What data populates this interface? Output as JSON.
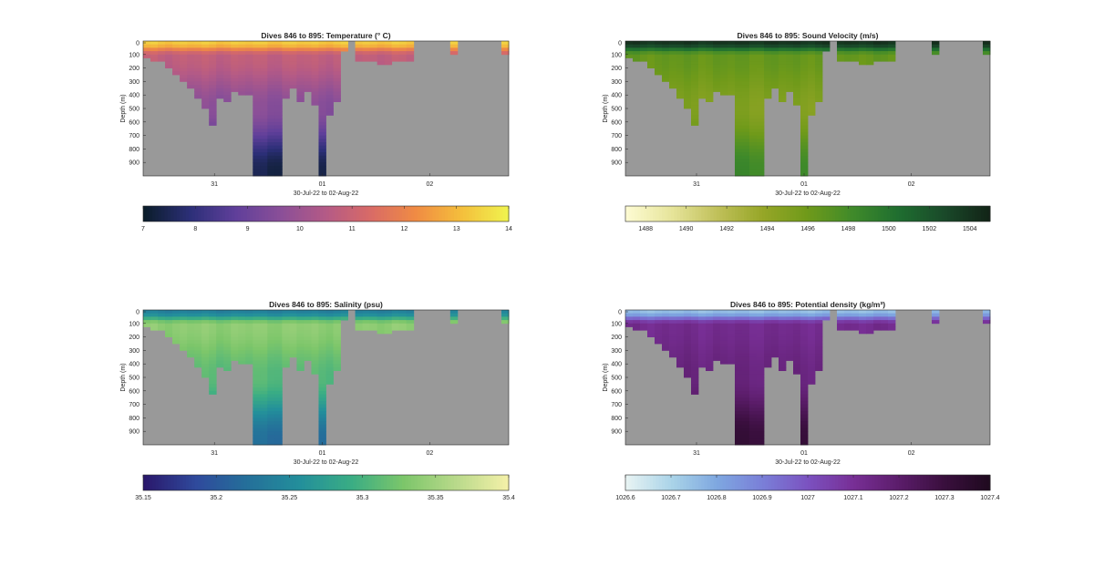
{
  "figure": {
    "panels": [
      {
        "id": "temperature",
        "title": "Dives 846 to 895: Temperature (° C)",
        "ylabel": "Depth (m)",
        "xlabel": "30-Jul-22 to 02-Aug-22",
        "xticks": [
          "31",
          "01",
          "02"
        ],
        "yticks": [
          "0",
          "100",
          "200",
          "300",
          "400",
          "500",
          "600",
          "700",
          "800",
          "900"
        ],
        "colorbar_ticks": [
          "7",
          "8",
          "9",
          "10",
          "11",
          "12",
          "13",
          "14"
        ],
        "colormap": [
          "#0b1d2b",
          "#2c2f78",
          "#5f3f9a",
          "#8a4f98",
          "#b45a86",
          "#d96b66",
          "#f08c43",
          "#f4bf3c",
          "#f0f24e"
        ],
        "range": [
          7,
          14
        ],
        "surface_value": 13.3,
        "mixed_value": 10.8,
        "deep_value": 9.6,
        "bottom_value": 7.4
      },
      {
        "id": "sound_velocity",
        "title": "Dives 846 to 895: Sound Velocity (m/s)",
        "ylabel": "Depth (m)",
        "xlabel": "30-Jul-22 to 02-Aug-22",
        "xticks": [
          "31",
          "01",
          "02"
        ],
        "yticks": [
          "0",
          "100",
          "200",
          "300",
          "400",
          "500",
          "600",
          "700",
          "800",
          "900"
        ],
        "colorbar_ticks": [
          "1488",
          "1490",
          "1492",
          "1494",
          "1496",
          "1498",
          "1500",
          "1502",
          "1504"
        ],
        "colormap": [
          "#fdfbd2",
          "#e6e49a",
          "#c0c05a",
          "#96a627",
          "#6f9a1a",
          "#3f8a2a",
          "#1f6e30",
          "#1a4a2a",
          "#122417"
        ],
        "range": [
          1487,
          1505
        ],
        "surface_value": 1504,
        "mixed_value": 1496.5,
        "deep_value": 1495,
        "bottom_value": 1498.5
      },
      {
        "id": "salinity",
        "title": "Dives 846 to 895: Salinity (psu)",
        "ylabel": "Depth (m)",
        "xlabel": "30-Jul-22 to 02-Aug-22",
        "xticks": [
          "31",
          "01",
          "02"
        ],
        "yticks": [
          "0",
          "100",
          "200",
          "300",
          "400",
          "500",
          "600",
          "700",
          "800",
          "900"
        ],
        "colorbar_ticks": [
          "35.15",
          "35.2",
          "35.25",
          "35.3",
          "35.35",
          "35.4"
        ],
        "colormap": [
          "#2a186c",
          "#2f4a9c",
          "#24709a",
          "#238f9b",
          "#3aad84",
          "#7cc66a",
          "#b8d98a",
          "#f3f0a8"
        ],
        "range": [
          35.15,
          35.4
        ],
        "surface_value": 35.24,
        "mixed_value": 35.34,
        "deep_value": 35.31,
        "bottom_value": 35.22
      },
      {
        "id": "potential_density",
        "title": "Dives 846 to 895: Potential density (kg/m³)",
        "ylabel": "Depth (m)",
        "xlabel": "30-Jul-22 to 02-Aug-22",
        "xticks": [
          "31",
          "01",
          "02"
        ],
        "yticks": [
          "0",
          "100",
          "200",
          "300",
          "400",
          "500",
          "600",
          "700",
          "800",
          "900"
        ],
        "colorbar_ticks": [
          "1026.6",
          "1026.7",
          "1026.8",
          "1026.9",
          "1027",
          "1027.1",
          "1027.2",
          "1027.3",
          "1027.4"
        ],
        "colormap": [
          "#e7f3f3",
          "#a9d3e8",
          "#7ea7e0",
          "#7a7fd8",
          "#7b52c0",
          "#782f96",
          "#5c1d6b",
          "#3a0f3e",
          "#200a20"
        ],
        "range": [
          1026.6,
          1027.4
        ],
        "surface_value": 1026.75,
        "mixed_value": 1027.12,
        "deep_value": 1027.16,
        "bottom_value": 1027.32
      }
    ]
  },
  "chart_data": [
    {
      "type": "heatmap",
      "title": "Dives 846 to 895: Temperature (° C)",
      "xlabel": "30-Jul-22 to 02-Aug-22",
      "ylabel": "Depth (m)",
      "x_ticks": [
        "31",
        "01",
        "02"
      ],
      "y_ticks": [
        0,
        100,
        200,
        300,
        400,
        500,
        600,
        700,
        800,
        900
      ],
      "ylim": [
        1000,
        0
      ],
      "color_range": [
        7,
        14
      ],
      "colorbar_ticks": [
        7,
        8,
        9,
        10,
        11,
        12,
        13,
        14
      ],
      "description_values": {
        "surface": 13.3,
        "thermocline_0_100m": 10.8,
        "deep_300_700m": 9.6,
        "bottom_900m": 7.4
      }
    },
    {
      "type": "heatmap",
      "title": "Dives 846 to 895: Sound Velocity (m/s)",
      "xlabel": "30-Jul-22 to 02-Aug-22",
      "ylabel": "Depth (m)",
      "x_ticks": [
        "31",
        "01",
        "02"
      ],
      "y_ticks": [
        0,
        100,
        200,
        300,
        400,
        500,
        600,
        700,
        800,
        900
      ],
      "ylim": [
        1000,
        0
      ],
      "color_range": [
        1487,
        1505
      ],
      "colorbar_ticks": [
        1488,
        1490,
        1492,
        1494,
        1496,
        1498,
        1500,
        1502,
        1504
      ],
      "description_values": {
        "surface": 1504,
        "thermocline_0_100m": 1496.5,
        "deep_300_700m": 1495,
        "bottom_900m": 1498.5
      }
    },
    {
      "type": "heatmap",
      "title": "Dives 846 to 895: Salinity (psu)",
      "xlabel": "30-Jul-22 to 02-Aug-22",
      "ylabel": "Depth (m)",
      "x_ticks": [
        "31",
        "01",
        "02"
      ],
      "y_ticks": [
        0,
        100,
        200,
        300,
        400,
        500,
        600,
        700,
        800,
        900
      ],
      "ylim": [
        1000,
        0
      ],
      "color_range": [
        35.15,
        35.4
      ],
      "colorbar_ticks": [
        35.15,
        35.2,
        35.25,
        35.3,
        35.35,
        35.4
      ],
      "description_values": {
        "surface": 35.24,
        "thermocline_0_100m": 35.34,
        "deep_300_700m": 35.31,
        "bottom_900m": 35.22
      }
    },
    {
      "type": "heatmap",
      "title": "Dives 846 to 895: Potential density (kg/m³)",
      "xlabel": "30-Jul-22 to 02-Aug-22",
      "ylabel": "Depth (m)",
      "x_ticks": [
        "31",
        "01",
        "02"
      ],
      "y_ticks": [
        0,
        100,
        200,
        300,
        400,
        500,
        600,
        700,
        800,
        900
      ],
      "ylim": [
        1000,
        0
      ],
      "color_range": [
        1026.6,
        1027.4
      ],
      "colorbar_ticks": [
        1026.6,
        1026.7,
        1026.8,
        1026.9,
        1027,
        1027.1,
        1027.2,
        1027.3,
        1027.4
      ],
      "description_values": {
        "surface": 1026.75,
        "thermocline_0_100m": 1027.12,
        "deep_300_700m": 1027.16,
        "bottom_900m": 1027.32
      }
    }
  ]
}
